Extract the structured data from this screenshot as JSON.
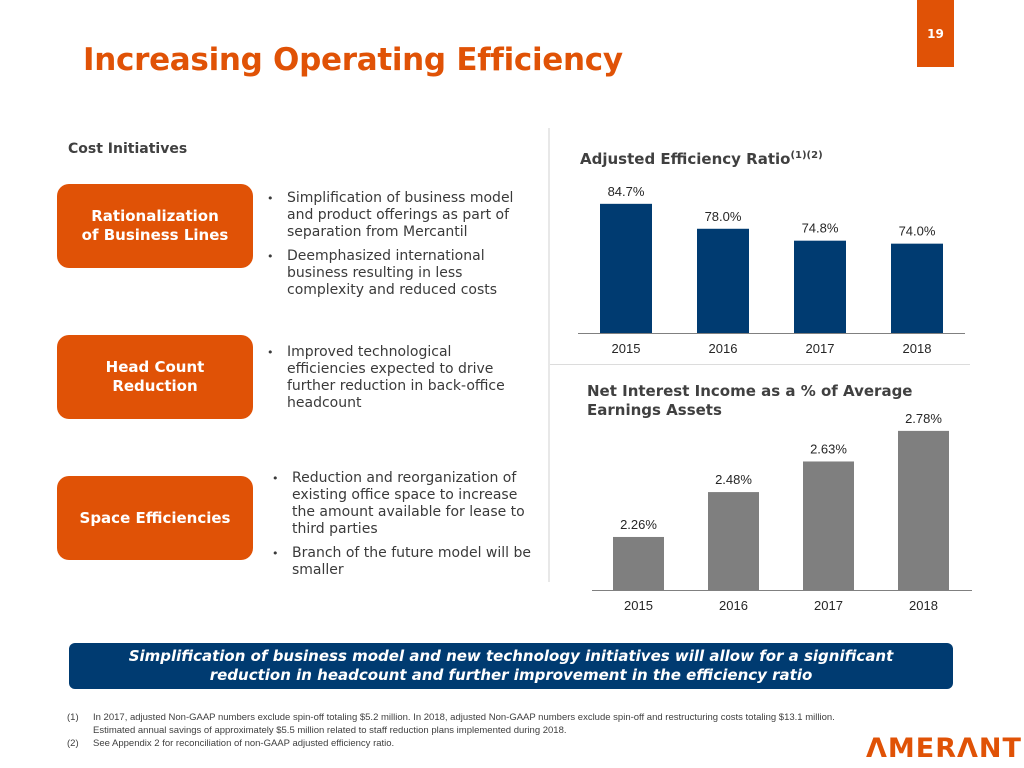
{
  "page_number": "19",
  "title": "Increasing Operating Efficiency",
  "cost_initiatives": {
    "heading": "Cost Initiatives",
    "items": [
      {
        "label_lines": [
          "Rationalization",
          "of Business Lines"
        ],
        "bullets": [
          "Simplification of business model and product offerings as part of separation from Mercantil",
          "Deemphasized international business resulting in less complexity and reduced costs"
        ]
      },
      {
        "label_lines": [
          "Head Count",
          "Reduction"
        ],
        "bullets": [
          "Improved technological efficiencies expected to drive further reduction in back-office headcount"
        ]
      },
      {
        "label_lines": [
          "Space Efficiencies"
        ],
        "bullets": [
          "Reduction and reorganization of existing office space to increase the amount available for lease to third parties",
          "Branch of the future model will be smaller"
        ]
      }
    ]
  },
  "chart_data": [
    {
      "type": "bar",
      "title": "Adjusted Efficiency Ratio",
      "title_superscript": "(1)(2)",
      "categories": [
        "2015",
        "2016",
        "2017",
        "2018"
      ],
      "values": [
        84.7,
        78.0,
        74.8,
        74.0
      ],
      "labels": [
        "84.7%",
        "78.0%",
        "74.8%",
        "74.0%"
      ],
      "ylim": [
        50,
        90
      ],
      "xlabel": "",
      "ylabel": "",
      "grid": false,
      "color": "#003b71"
    },
    {
      "type": "bar",
      "title": "Net Interest Income as a % of Average Earnings Assets",
      "categories": [
        "2015",
        "2016",
        "2017",
        "2018"
      ],
      "values": [
        2.26,
        2.48,
        2.63,
        2.78
      ],
      "labels": [
        "2.26%",
        "2.48%",
        "2.63%",
        "2.78%"
      ],
      "ylim": [
        2.0,
        2.85
      ],
      "xlabel": "",
      "ylabel": "",
      "grid": false,
      "color": "#7f7f7f"
    }
  ],
  "banner": {
    "line1": "Simplification of business model and new technology initiatives will allow for a significant",
    "line2": "reduction in headcount and further improvement in the efficiency ratio"
  },
  "footnotes": [
    {
      "num": "(1)",
      "lines": [
        "In 2017, adjusted Non-GAAP numbers exclude spin-off totaling $5.2 million. In 2018, adjusted Non-GAAP numbers exclude spin-off and restructuring costs totaling $13.1 million.",
        "Estimated annual savings of approximately $5.5 million related to staff reduction plans implemented during 2018."
      ]
    },
    {
      "num": "(2)",
      "lines": [
        "See Appendix 2 for reconciliation of non-GAAP adjusted efficiency ratio."
      ]
    }
  ],
  "logo": "ΛMERΛNT",
  "colors": {
    "brand_orange": "#e05206",
    "brand_navy": "#003b71",
    "bar_gray": "#7f7f7f"
  }
}
